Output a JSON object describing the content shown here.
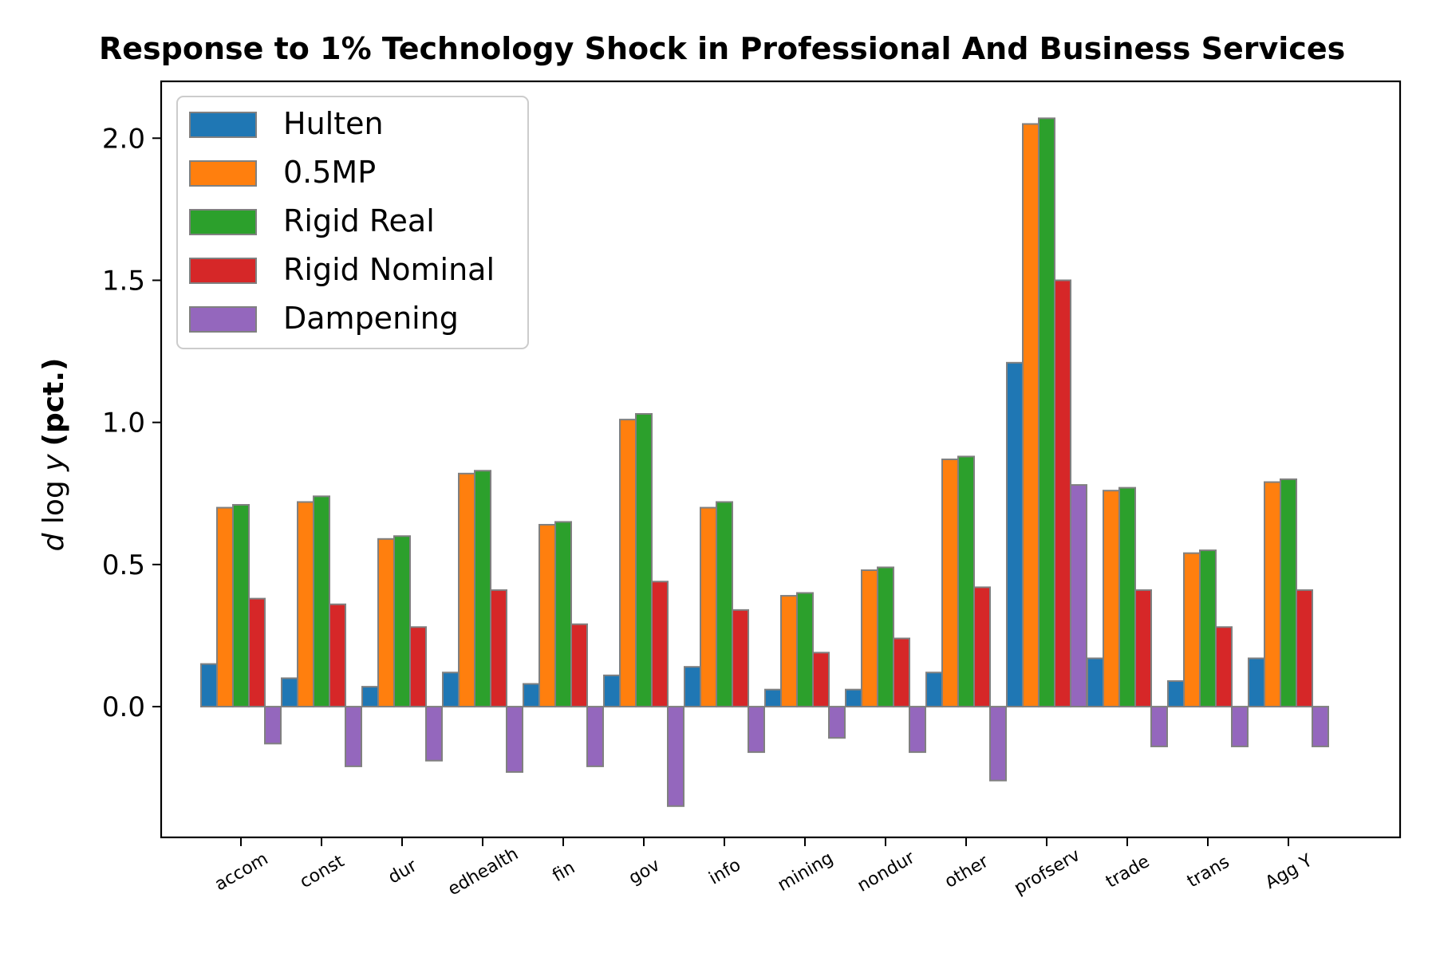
{
  "chart_data": {
    "type": "bar",
    "title": "Response to 1% Technology Shock in Professional And Business Services",
    "ylabel": {
      "math": "d log y",
      "text": "(pct.)"
    },
    "xlabel": "",
    "categories": [
      "accom",
      "const",
      "dur",
      "edhealth",
      "fin",
      "gov",
      "info",
      "mining",
      "nondur",
      "other",
      "profserv",
      "trade",
      "trans",
      "Agg Y"
    ],
    "y_ticks": [
      "0.0",
      "0.5",
      "1.0",
      "1.5",
      "2.0"
    ],
    "ylim": [
      -0.46,
      2.2
    ],
    "legend_position": "upper left",
    "grid": false,
    "series": [
      {
        "name": "Hulten",
        "color": "#1f77b4",
        "values": [
          0.15,
          0.1,
          0.07,
          0.12,
          0.08,
          0.11,
          0.14,
          0.06,
          0.06,
          0.12,
          1.21,
          0.17,
          0.09,
          0.17
        ]
      },
      {
        "name": "0.5MP",
        "color": "#ff7f0e",
        "values": [
          0.7,
          0.72,
          0.59,
          0.82,
          0.64,
          1.01,
          0.7,
          0.39,
          0.48,
          0.87,
          2.05,
          0.76,
          0.54,
          0.79
        ]
      },
      {
        "name": "Rigid Real",
        "color": "#2ca02c",
        "values": [
          0.71,
          0.74,
          0.6,
          0.83,
          0.65,
          1.03,
          0.72,
          0.4,
          0.49,
          0.88,
          2.07,
          0.77,
          0.55,
          0.8
        ]
      },
      {
        "name": "Rigid Nominal",
        "color": "#d62728",
        "values": [
          0.38,
          0.36,
          0.28,
          0.41,
          0.29,
          0.44,
          0.34,
          0.19,
          0.24,
          0.42,
          1.5,
          0.41,
          0.28,
          0.41
        ]
      },
      {
        "name": "Dampening",
        "color": "#9467bd",
        "values": [
          -0.13,
          -0.21,
          -0.19,
          -0.23,
          -0.21,
          -0.35,
          -0.16,
          -0.11,
          -0.16,
          -0.26,
          0.78,
          -0.14,
          -0.14,
          -0.14
        ]
      }
    ],
    "edge_color": "#808080"
  }
}
